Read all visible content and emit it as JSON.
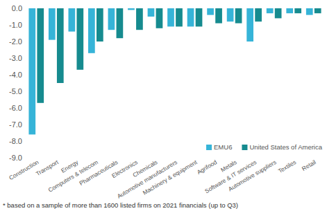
{
  "chart_data": {
    "type": "bar",
    "categories": [
      "Construction",
      "Transport",
      "Energy",
      "Computers & telecom",
      "Pharmaceuticals",
      "Electronics",
      "Chemicals",
      "Automotive manufacturers",
      "Machinery & equipment",
      "Agrifood",
      "Metals",
      "Software & IT services",
      "Automotive suppliers",
      "Textiles",
      "Retail"
    ],
    "series": [
      {
        "name": "EMU6",
        "color": "#36b4d8",
        "values": [
          -7.6,
          -1.9,
          -1.4,
          -2.7,
          -1.3,
          -0.1,
          -0.5,
          -1.1,
          -1.1,
          -0.4,
          -0.8,
          -2.0,
          -0.3,
          -0.3,
          -0.4
        ]
      },
      {
        "name": "United States of America",
        "color": "#168b8f",
        "values": [
          -5.7,
          -4.5,
          -3.7,
          -2.0,
          -1.8,
          -1.3,
          -1.2,
          -1.1,
          -1.1,
          -0.9,
          -0.9,
          -0.8,
          -0.6,
          -0.3,
          -0.3
        ]
      }
    ],
    "ylim": [
      -9,
      0
    ],
    "yticks": [
      {
        "value": 0,
        "label": "0.0"
      },
      {
        "value": -1,
        "label": "-1.0"
      },
      {
        "value": -2,
        "label": "-2.0"
      },
      {
        "value": -3,
        "label": "-3.0"
      },
      {
        "value": -4,
        "label": "-4.0"
      },
      {
        "value": -5,
        "label": "-5.0"
      },
      {
        "value": -6,
        "label": "-6.0"
      },
      {
        "value": -7,
        "label": "-7.0"
      },
      {
        "value": -8,
        "label": "-8.0"
      },
      {
        "value": -9,
        "label": "-9.0"
      }
    ],
    "grid": false,
    "legend": "bottom-right",
    "data_labels": false,
    "footnote": "* based on a sample of more than 1600 listed firms on 2021 financials (up to Q3)"
  }
}
